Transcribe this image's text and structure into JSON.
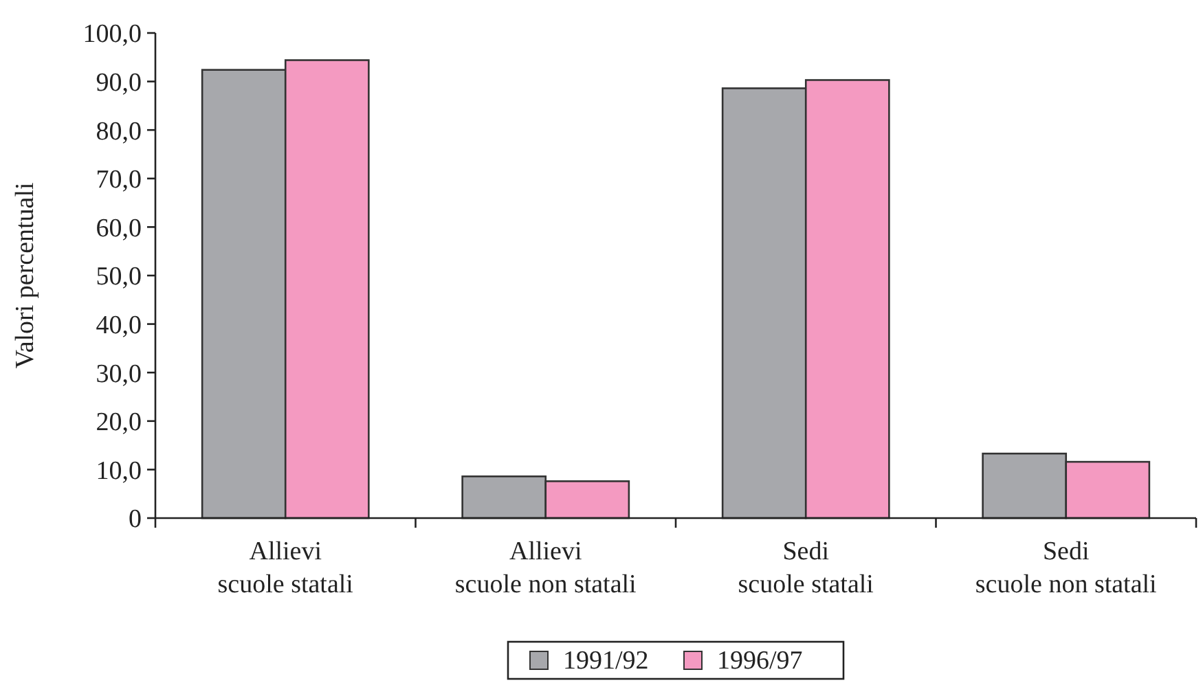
{
  "chart_data": {
    "type": "bar",
    "ylabel": "Valori percentuali",
    "categories": [
      "Allievi\nscuole statali",
      "Allievi\nscuole non statali",
      "Sedi\nscuole statali",
      "Sedi\nscuole non statali"
    ],
    "series": [
      {
        "name": "1991/92",
        "color": "#a7a8ac",
        "values": [
          92.4,
          8.6,
          88.6,
          13.3
        ]
      },
      {
        "name": "1996/97",
        "color": "#f49ac1",
        "values": [
          94.4,
          7.6,
          90.3,
          11.6
        ]
      }
    ],
    "ylim": [
      0,
      100
    ],
    "yticks": [
      {
        "value": 0,
        "label": "0"
      },
      {
        "value": 10,
        "label": "10,0"
      },
      {
        "value": 20,
        "label": "20,0"
      },
      {
        "value": 30,
        "label": "30,0"
      },
      {
        "value": 40,
        "label": "40,0"
      },
      {
        "value": 50,
        "label": "50,0"
      },
      {
        "value": 60,
        "label": "60,0"
      },
      {
        "value": 70,
        "label": "70,0"
      },
      {
        "value": 80,
        "label": "80,0"
      },
      {
        "value": 90,
        "label": "90,0"
      },
      {
        "value": 100,
        "label": "100,0"
      }
    ],
    "grid": false,
    "legend": "bottom"
  }
}
